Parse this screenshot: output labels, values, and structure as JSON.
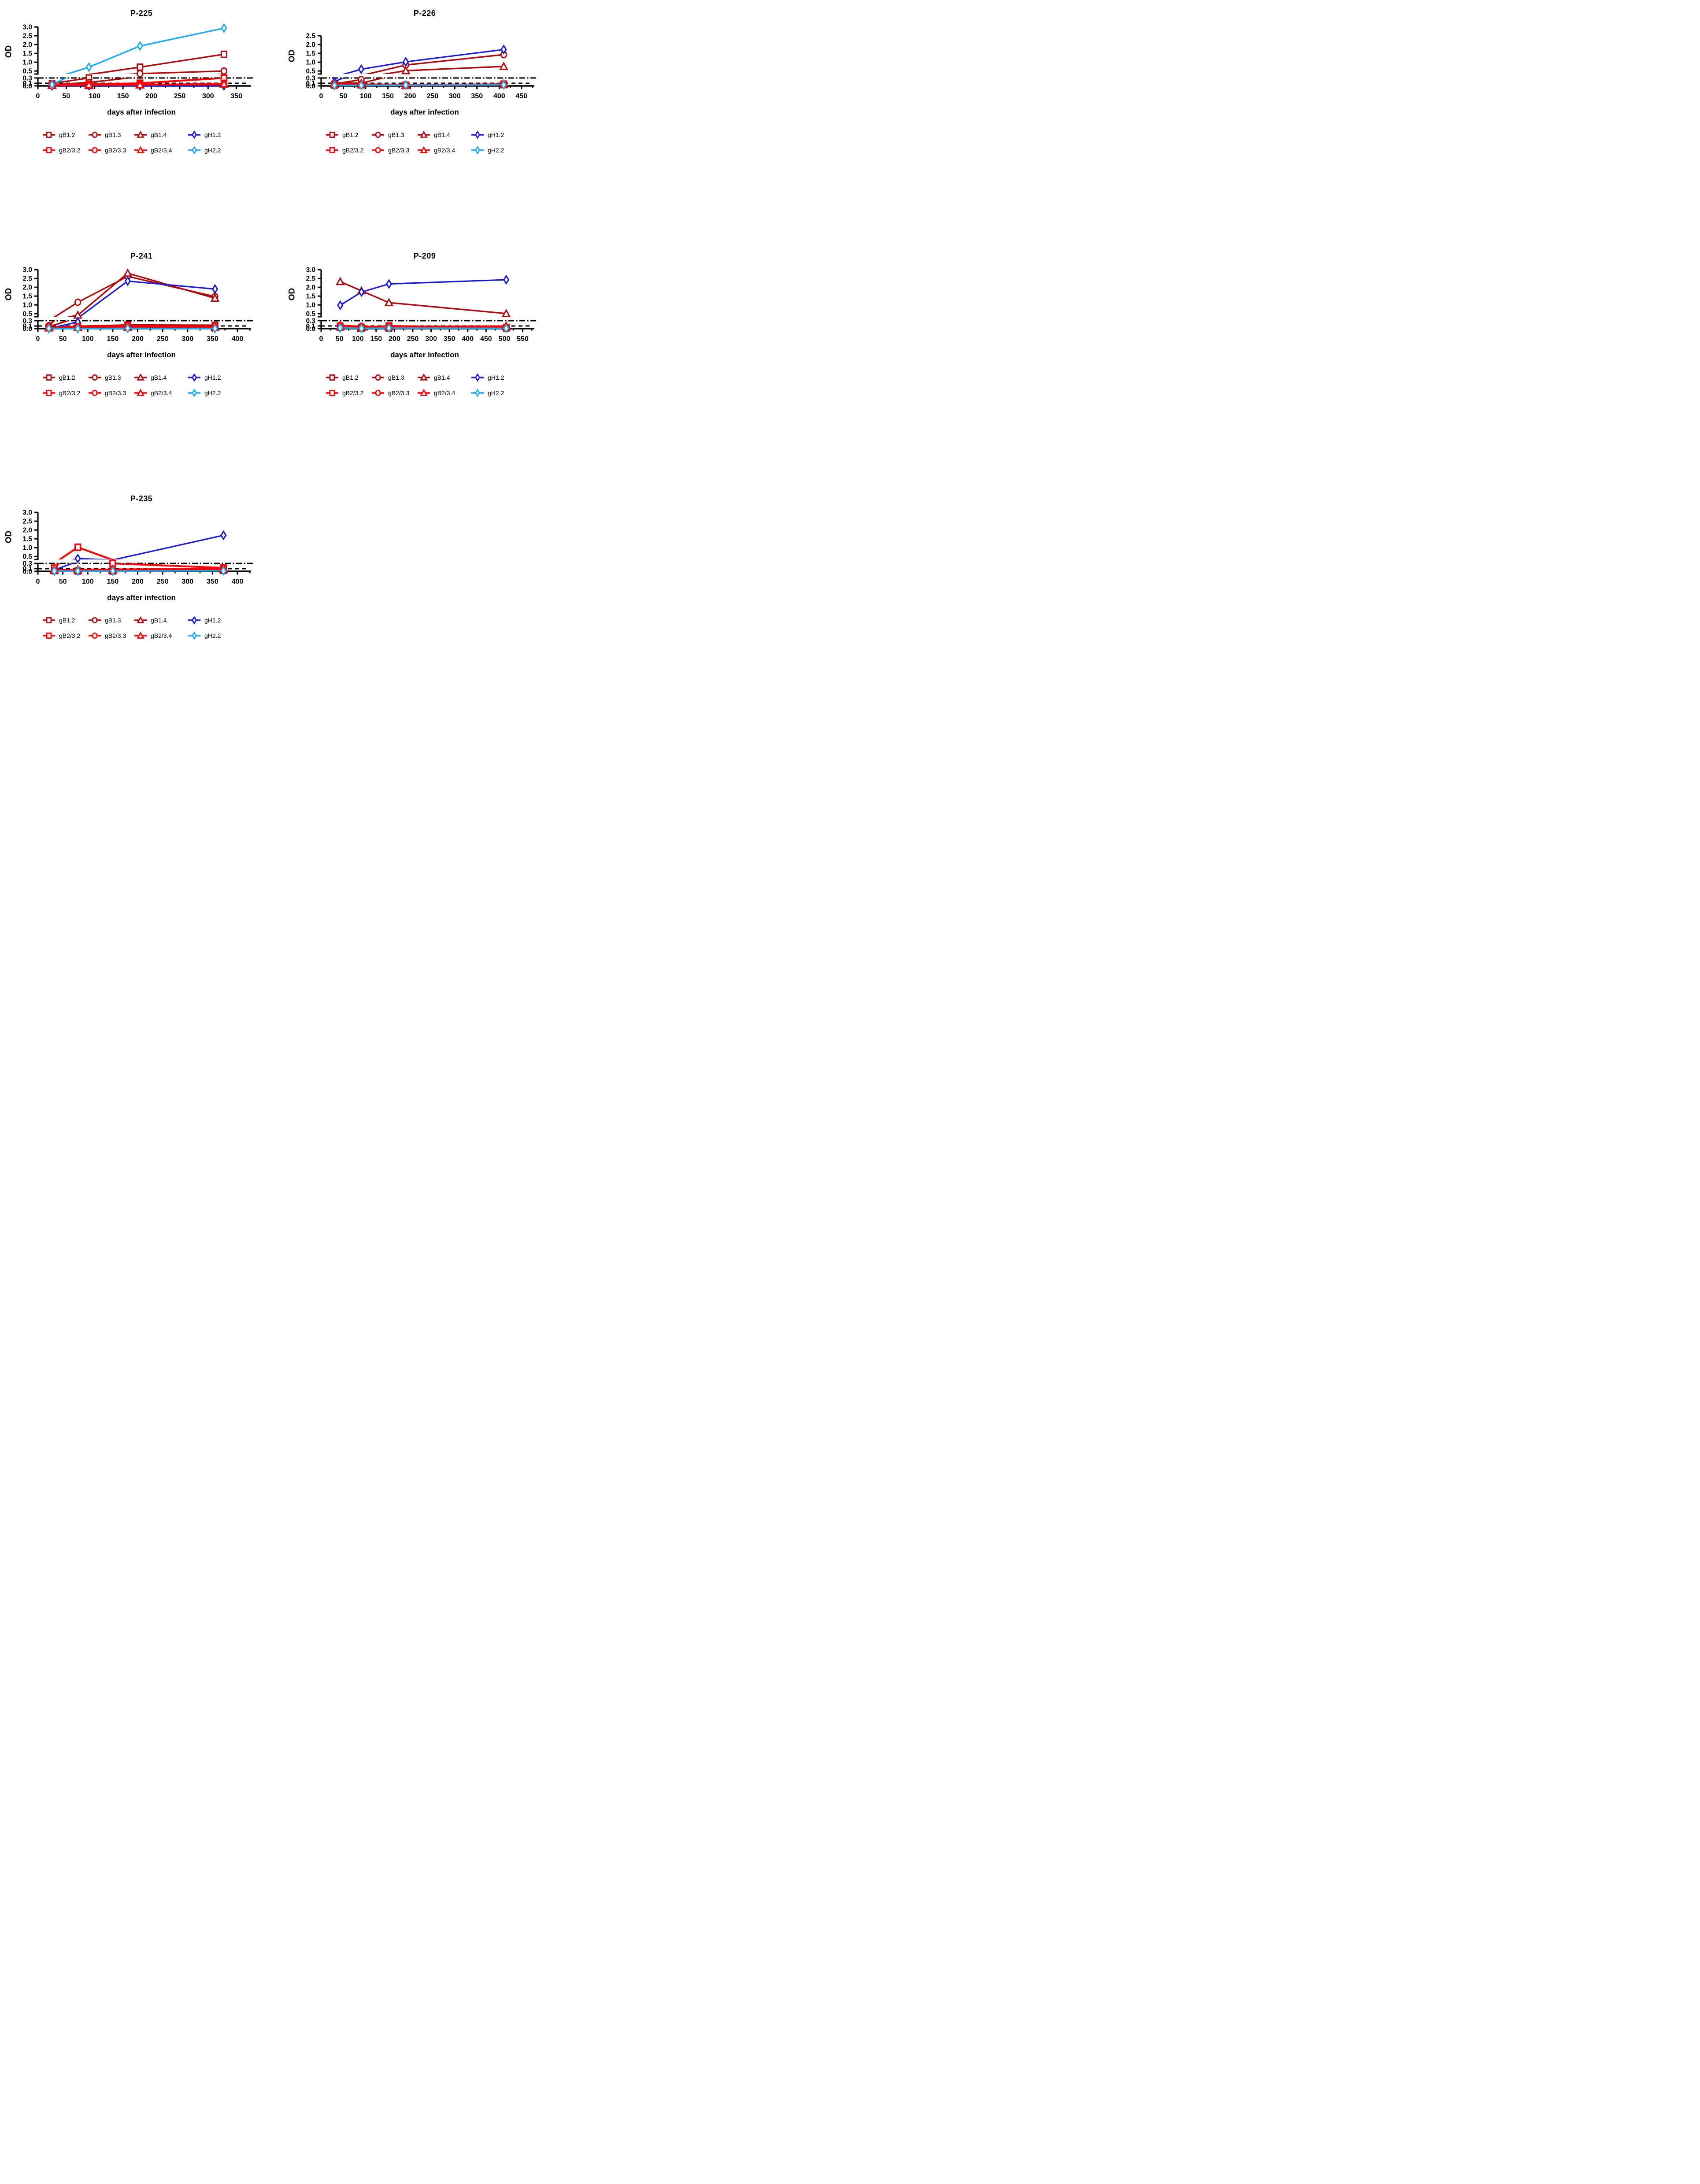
{
  "figure": {
    "x_axis_label": "days after infection",
    "y_axis_label": "OD"
  },
  "colors": {
    "dark_red": "#ad0c10",
    "bright_red": "#fa0307",
    "dark_blue": "#1a1ad6",
    "cyan": "#1fa9f0",
    "axis_black": "#000000",
    "marker_fill": "#ffffff"
  },
  "series_styles": [
    {
      "name": "gB1.2",
      "color": "#ad0c10",
      "marker": "square",
      "line_width": 3.4
    },
    {
      "name": "gB1.3",
      "color": "#ad0c10",
      "marker": "circle",
      "line_width": 3.4
    },
    {
      "name": "gB1.4",
      "color": "#ad0c10",
      "marker": "triangle",
      "line_width": 3.4
    },
    {
      "name": "gH1.2",
      "color": "#1a1ad6",
      "marker": "diamond",
      "line_width": 3.2
    },
    {
      "name": "gB2/3.2",
      "color": "#fa0307",
      "marker": "square",
      "line_width": 4.2
    },
    {
      "name": "gB2/3.3",
      "color": "#fa0307",
      "marker": "circle",
      "line_width": 4.2
    },
    {
      "name": "gB2/3.4",
      "color": "#fa0307",
      "marker": "triangle",
      "line_width": 4.2
    },
    {
      "name": "gH2.2",
      "color": "#1fa9f0",
      "marker": "diamond",
      "line_width": 3.4
    }
  ],
  "chart_data": [
    {
      "type": "line",
      "title": "P-225",
      "xlabel": "days after infection",
      "ylabel": "OD",
      "x": [
        25,
        90,
        180,
        328
      ],
      "x_tick_step": 50,
      "x_tick_max": 350,
      "x_axis_max": 365,
      "y_max": 3.0,
      "y_ticks_upper": [
        0.5,
        1.0,
        1.5,
        2.0,
        2.5,
        3.0
      ],
      "y_ticks_lower": [
        0.0,
        0.1,
        0.3
      ],
      "axis_break": {
        "lower_range": [
          0,
          0.3
        ],
        "upper_range": [
          0.33,
          3.0
        ]
      },
      "reference_lines": [
        {
          "y": 0.3,
          "style": "dash-dot"
        },
        {
          "y": 0.1,
          "style": "dashed"
        }
      ],
      "series": [
        {
          "name": "gB1.2",
          "values": [
            0.09,
            0.3,
            0.72,
            1.45
          ]
        },
        {
          "name": "gB1.3",
          "values": [
            0.04,
            0.13,
            0.35,
            0.5
          ]
        },
        {
          "name": "gB1.4",
          "values": [
            0.03,
            0.01,
            0.04,
            0.07
          ]
        },
        {
          "name": "gH1.2",
          "values": [
            0.0,
            0.01,
            0.0,
            0.0
          ]
        },
        {
          "name": "gB2/3.2",
          "values": [
            0.05,
            0.06,
            0.1,
            0.3
          ]
        },
        {
          "name": "gB2/3.3",
          "values": [
            0.03,
            0.05,
            0.05,
            0.05
          ]
        },
        {
          "name": "gB2/3.4",
          "values": [
            0.02,
            0.04,
            0.04,
            0.08
          ]
        },
        {
          "name": "gH2.2",
          "values": [
            0.05,
            0.72,
            1.92,
            2.93
          ]
        }
      ]
    },
    {
      "type": "line",
      "title": "P-226",
      "xlabel": "days after infection",
      "ylabel": "OD",
      "x": [
        30,
        90,
        190,
        410
      ],
      "x_tick_step": 50,
      "x_tick_max": 450,
      "x_axis_max": 465,
      "y_max": 2.5,
      "y_ticks_upper": [
        0.5,
        1.0,
        1.5,
        2.0,
        2.5
      ],
      "y_ticks_lower": [
        0.0,
        0.1,
        0.3
      ],
      "axis_break": {
        "lower_range": [
          0,
          0.3
        ],
        "upper_range": [
          0.33,
          2.5
        ]
      },
      "reference_lines": [
        {
          "y": 0.3,
          "style": "dash-dot"
        },
        {
          "y": 0.1,
          "style": "dashed"
        }
      ],
      "series": [
        {
          "name": "gB1.2",
          "values": [
            0.05,
            0.05,
            0.03,
            0.07
          ]
        },
        {
          "name": "gB1.3",
          "values": [
            0.07,
            0.24,
            0.84,
            1.43
          ]
        },
        {
          "name": "gB1.4",
          "values": [
            0.12,
            0.1,
            0.52,
            0.76
          ]
        },
        {
          "name": "gH1.2",
          "values": [
            0.16,
            0.6,
            1.02,
            1.72
          ]
        },
        {
          "name": "gB2/3.2",
          "values": [
            0.03,
            0.04,
            0.02,
            0.05
          ]
        },
        {
          "name": "gB2/3.3",
          "values": [
            0.05,
            0.06,
            0.04,
            0.06
          ]
        },
        {
          "name": "gB2/3.4",
          "values": [
            0.06,
            0.05,
            0.03,
            0.06
          ]
        },
        {
          "name": "gH2.2",
          "values": [
            0.02,
            0.02,
            0.03,
            0.04
          ]
        }
      ]
    },
    {
      "type": "line",
      "title": "P-241",
      "xlabel": "days after infection",
      "ylabel": "OD",
      "x": [
        22,
        80,
        180,
        355
      ],
      "x_tick_step": 50,
      "x_tick_max": 400,
      "x_axis_max": 415,
      "y_max": 3.0,
      "y_ticks_upper": [
        0.5,
        1.0,
        1.5,
        2.0,
        2.5,
        3.0
      ],
      "y_ticks_lower": [
        0.0,
        0.1,
        0.3
      ],
      "axis_break": {
        "lower_range": [
          0,
          0.3
        ],
        "upper_range": [
          0.33,
          3.0
        ]
      },
      "reference_lines": [
        {
          "y": 0.3,
          "style": "dash-dot"
        },
        {
          "y": 0.1,
          "style": "dashed"
        }
      ],
      "series": [
        {
          "name": "gB1.2",
          "values": [
            0.05,
            0.09,
            0.14,
            0.13
          ]
        },
        {
          "name": "gB1.3",
          "values": [
            0.11,
            1.15,
            2.62,
            1.47
          ]
        },
        {
          "name": "gB1.4",
          "values": [
            0.07,
            0.42,
            2.8,
            1.38
          ]
        },
        {
          "name": "gH1.2",
          "values": [
            0.0,
            0.25,
            2.35,
            1.9
          ]
        },
        {
          "name": "gB2/3.2",
          "values": [
            0.04,
            0.06,
            0.1,
            0.06
          ]
        },
        {
          "name": "gB2/3.3",
          "values": [
            0.03,
            0.05,
            0.03,
            0.05
          ]
        },
        {
          "name": "gB2/3.4",
          "values": [
            0.03,
            0.04,
            0.04,
            0.04
          ]
        },
        {
          "name": "gH2.2",
          "values": [
            0.01,
            0.0,
            0.01,
            0.0
          ]
        }
      ]
    },
    {
      "type": "line",
      "title": "P-209",
      "xlabel": "days after infection",
      "ylabel": "OD",
      "x": [
        52,
        110,
        185,
        505
      ],
      "x_tick_step": 50,
      "x_tick_max": 550,
      "x_axis_max": 565,
      "y_max": 3.0,
      "y_ticks_upper": [
        0.5,
        1.0,
        1.5,
        2.0,
        2.5,
        3.0
      ],
      "y_ticks_lower": [
        0.0,
        0.1,
        0.3
      ],
      "axis_break": {
        "lower_range": [
          0,
          0.3
        ],
        "upper_range": [
          0.33,
          3.0
        ]
      },
      "reference_lines": [
        {
          "y": 0.3,
          "style": "dash-dot"
        },
        {
          "y": 0.1,
          "style": "dashed"
        }
      ],
      "series": [
        {
          "name": "gB1.2",
          "values": [
            0.09,
            0.02,
            0.01,
            0.02
          ]
        },
        {
          "name": "gB1.3",
          "values": [
            0.11,
            0.07,
            0.03,
            0.02
          ]
        },
        {
          "name": "gB1.4",
          "values": [
            2.32,
            1.8,
            1.13,
            0.51
          ]
        },
        {
          "name": "gH1.2",
          "values": [
            0.98,
            1.73,
            2.19,
            2.43
          ]
        },
        {
          "name": "gB2/3.2",
          "values": [
            0.06,
            0.03,
            0.1,
            0.03
          ]
        },
        {
          "name": "gB2/3.3",
          "values": [
            0.12,
            0.08,
            0.06,
            0.04
          ]
        },
        {
          "name": "gB2/3.4",
          "values": [
            0.08,
            0.05,
            0.07,
            0.09
          ]
        },
        {
          "name": "gH2.2",
          "values": [
            0.03,
            0.01,
            0.02,
            0.01
          ]
        }
      ]
    },
    {
      "type": "line",
      "title": "P-235",
      "xlabel": "days after infection",
      "ylabel": "OD",
      "x": [
        33,
        80,
        150,
        372
      ],
      "x_tick_step": 50,
      "x_tick_max": 400,
      "x_axis_max": 415,
      "y_max": 3.0,
      "y_ticks_upper": [
        0.5,
        1.0,
        1.5,
        2.0,
        2.5,
        3.0
      ],
      "y_ticks_lower": [
        0.0,
        0.1,
        0.3
      ],
      "axis_break": {
        "lower_range": [
          0,
          0.3
        ],
        "upper_range": [
          0.33,
          3.0
        ]
      },
      "reference_lines": [
        {
          "y": 0.3,
          "style": "dash-dot"
        },
        {
          "y": 0.1,
          "style": "dashed"
        }
      ],
      "series": [
        {
          "name": "gB1.2",
          "values": [
            0.02,
            0.01,
            0.01,
            0.03
          ]
        },
        {
          "name": "gB1.3",
          "values": [
            0.04,
            0.04,
            0.03,
            0.07
          ]
        },
        {
          "name": "gB1.4",
          "values": [
            0.04,
            0.05,
            0.04,
            0.08
          ]
        },
        {
          "name": "gH1.2",
          "values": [
            0.05,
            0.38,
            0.3,
            1.7
          ]
        },
        {
          "name": "gB2/3.2",
          "values": [
            0.12,
            1.02,
            0.3,
            0.13
          ]
        },
        {
          "name": "gB2/3.3",
          "values": [
            0.03,
            0.03,
            0.02,
            0.08
          ]
        },
        {
          "name": "gB2/3.4",
          "values": [
            0.05,
            0.06,
            0.07,
            0.1
          ]
        },
        {
          "name": "gH2.2",
          "values": [
            0.01,
            0.01,
            0.01,
            0.02
          ]
        }
      ]
    }
  ]
}
